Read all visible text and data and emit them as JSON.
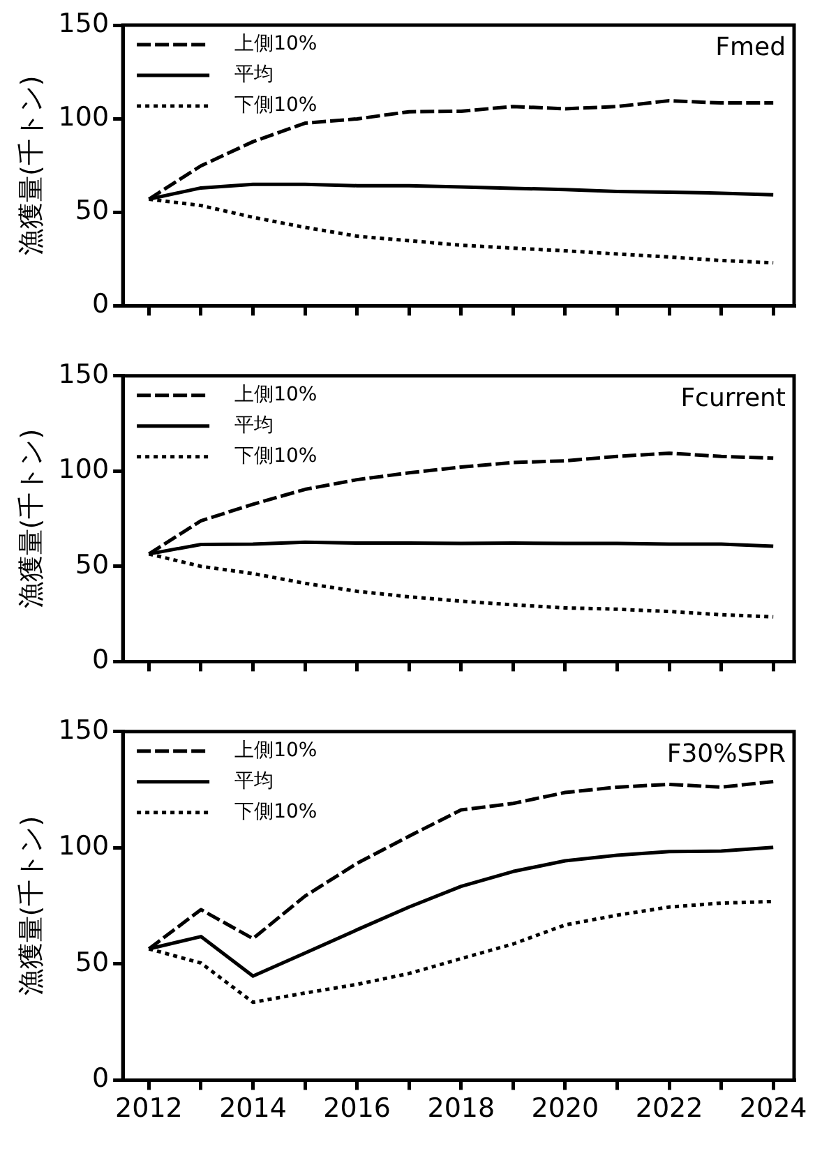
{
  "chart_data": [
    {
      "type": "line",
      "ylabel": "漁獲量(千トン)",
      "annotations": [
        "Fmed"
      ],
      "x": [
        2012,
        2013,
        2014,
        2015,
        2016,
        2017,
        2018,
        2019,
        2020,
        2021,
        2022,
        2023,
        2024
      ],
      "xlim": [
        2011.5,
        2024.4
      ],
      "xticks": [
        {
          "value": 2012,
          "label": null
        },
        {
          "value": 2013,
          "label": null
        },
        {
          "value": 2014,
          "label": null
        },
        {
          "value": 2015,
          "label": null
        },
        {
          "value": 2016,
          "label": null
        },
        {
          "value": 2017,
          "label": null
        },
        {
          "value": 2018,
          "label": null
        },
        {
          "value": 2019,
          "label": null
        },
        {
          "value": 2020,
          "label": null
        },
        {
          "value": 2021,
          "label": null
        },
        {
          "value": 2022,
          "label": null
        },
        {
          "value": 2023,
          "label": null
        },
        {
          "value": 2024,
          "label": null
        }
      ],
      "ylim": [
        0,
        150
      ],
      "yticks": [
        0,
        50,
        100,
        150
      ],
      "tick_labels": "y",
      "grid": false,
      "legend": "top left",
      "marker": "none",
      "series": [
        {
          "name": "上側10%",
          "color": "#000000",
          "line_style": "dashed",
          "values": [
            57,
            74.8,
            87.7,
            97.6,
            99.9,
            103.7,
            104,
            106.5,
            105.3,
            106.5,
            109.6,
            108.4,
            108.4
          ]
        },
        {
          "name": "平均",
          "color": "#000000",
          "line_style": "solid",
          "values": [
            57,
            63,
            64.9,
            64.9,
            64.2,
            64.2,
            63.5,
            62.8,
            62.1,
            61.1,
            60.7,
            60.2,
            59.3
          ]
        },
        {
          "name": "下側10%",
          "color": "#000000",
          "line_style": "dotted",
          "values": [
            57,
            53.6,
            47.3,
            41.9,
            37.2,
            34.8,
            32.4,
            30.8,
            29.4,
            27.7,
            26.1,
            24.2,
            23
          ]
        }
      ]
    },
    {
      "type": "line",
      "ylabel": "漁獲量(千トン)",
      "annotations": [
        "Fcurrent"
      ],
      "x": [
        2012,
        2013,
        2014,
        2015,
        2016,
        2017,
        2018,
        2019,
        2020,
        2021,
        2022,
        2023,
        2024
      ],
      "xlim": [
        2011.5,
        2024.4
      ],
      "xticks": [
        {
          "value": 2012,
          "label": null
        },
        {
          "value": 2013,
          "label": null
        },
        {
          "value": 2014,
          "label": null
        },
        {
          "value": 2015,
          "label": null
        },
        {
          "value": 2016,
          "label": null
        },
        {
          "value": 2017,
          "label": null
        },
        {
          "value": 2018,
          "label": null
        },
        {
          "value": 2019,
          "label": null
        },
        {
          "value": 2020,
          "label": null
        },
        {
          "value": 2021,
          "label": null
        },
        {
          "value": 2022,
          "label": null
        },
        {
          "value": 2023,
          "label": null
        },
        {
          "value": 2024,
          "label": null
        }
      ],
      "ylim": [
        0,
        150
      ],
      "yticks": [
        0,
        50,
        100,
        150
      ],
      "tick_labels": "y",
      "grid": false,
      "legend": "top left",
      "marker": "none",
      "series": [
        {
          "name": "上側10%",
          "color": "#000000",
          "line_style": "dashed",
          "values": [
            56.5,
            73.9,
            82.6,
            90.4,
            95.5,
            99.1,
            102.1,
            104.5,
            105.4,
            107.7,
            109.4,
            107.7,
            106.8
          ]
        },
        {
          "name": "平均",
          "color": "#000000",
          "line_style": "solid",
          "values": [
            56.5,
            61.5,
            61.7,
            62.7,
            62.2,
            62.2,
            62,
            62.2,
            62,
            62,
            61.7,
            61.7,
            60.6
          ]
        },
        {
          "name": "下側10%",
          "color": "#000000",
          "line_style": "dotted",
          "values": [
            56.5,
            50,
            46.2,
            41.1,
            36.9,
            34,
            31.7,
            29.8,
            28.2,
            27.5,
            26.3,
            24.6,
            23.5
          ]
        }
      ]
    },
    {
      "type": "line",
      "ylabel": "漁獲量(千トン)",
      "annotations": [
        "F30%SPR"
      ],
      "x": [
        2012,
        2013,
        2014,
        2015,
        2016,
        2017,
        2018,
        2019,
        2020,
        2021,
        2022,
        2023,
        2024
      ],
      "xlim": [
        2011.5,
        2024.4
      ],
      "xticks": [
        2012,
        {
          "value": 2013,
          "label": null
        },
        2014,
        {
          "value": 2015,
          "label": null
        },
        2016,
        {
          "value": 2017,
          "label": null
        },
        2018,
        {
          "value": 2019,
          "label": null
        },
        2020,
        {
          "value": 2021,
          "label": null
        },
        2022,
        {
          "value": 2023,
          "label": null
        },
        2024
      ],
      "ylim": [
        0,
        150
      ],
      "yticks": [
        0,
        50,
        100,
        150
      ],
      "grid": false,
      "legend": "top left",
      "marker": "none",
      "series": [
        {
          "name": "上側10%",
          "color": "#000000",
          "line_style": "dashed",
          "values": [
            56.5,
            73.4,
            60.9,
            79.2,
            93.3,
            105,
            116.3,
            119.1,
            123.8,
            126.1,
            127.3,
            126.1,
            128.5
          ]
        },
        {
          "name": "平均",
          "color": "#000000",
          "line_style": "solid",
          "values": [
            56.5,
            61.8,
            44.8,
            54.7,
            64.7,
            74.5,
            83.4,
            89.8,
            94.4,
            96.8,
            98.4,
            98.6,
            100.2
          ]
        },
        {
          "name": "下側10%",
          "color": "#000000",
          "line_style": "dotted",
          "values": [
            56.5,
            50.4,
            33.5,
            37.5,
            41.2,
            45.9,
            52.3,
            58.6,
            66.8,
            71,
            74.5,
            76.2,
            76.9
          ]
        }
      ]
    }
  ]
}
